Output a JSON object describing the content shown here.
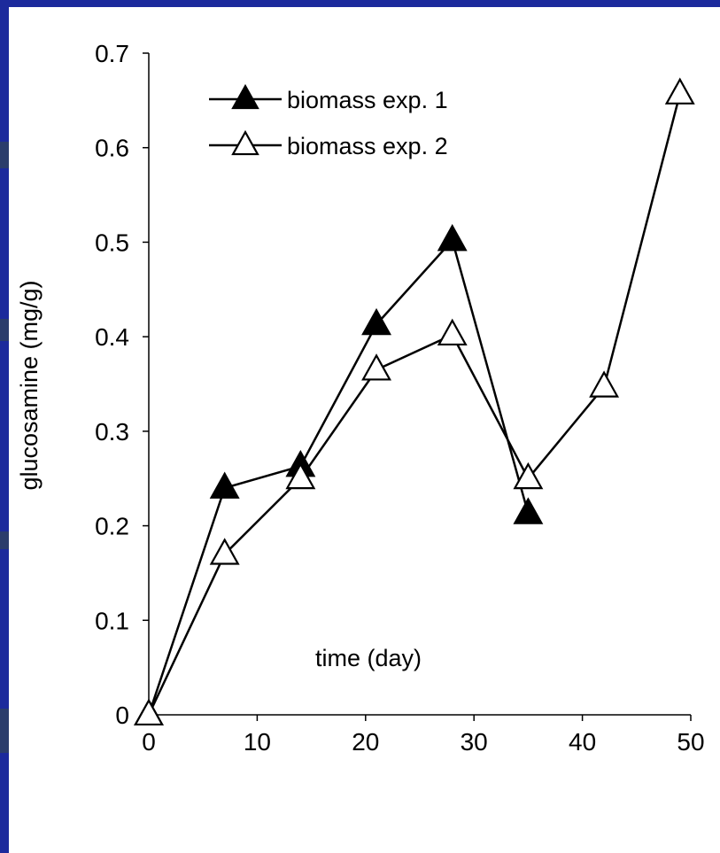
{
  "colors": {
    "frame": "#1c2a9c",
    "frame_band": "#2b3d6b",
    "line": "#000000",
    "filled_marker": "#000000",
    "open_marker": "#ffffff"
  },
  "chart_data": {
    "type": "line",
    "title": "",
    "xlabel": "time (day)",
    "ylabel": "glucosamine (mg/g)",
    "xlim": [
      0,
      50
    ],
    "ylim": [
      0,
      0.7
    ],
    "xticks": [
      0,
      10,
      20,
      30,
      40,
      50
    ],
    "yticks": [
      0,
      0.1,
      0.2,
      0.3,
      0.4,
      0.5,
      0.6,
      0.7
    ],
    "grid": false,
    "legend": "top-left",
    "series": [
      {
        "name": "biomass exp. 1",
        "marker": "filled-triangle",
        "x": [
          0,
          7,
          14,
          21,
          28,
          35
        ],
        "y": [
          0,
          0.24,
          0.263,
          0.413,
          0.502,
          0.213
        ]
      },
      {
        "name": "biomass exp. 2",
        "marker": "open-triangle",
        "x": [
          0,
          7,
          14,
          21,
          28,
          35,
          42,
          49
        ],
        "y": [
          0,
          0.17,
          0.25,
          0.365,
          0.402,
          0.25,
          0.347,
          0.657
        ]
      }
    ]
  }
}
